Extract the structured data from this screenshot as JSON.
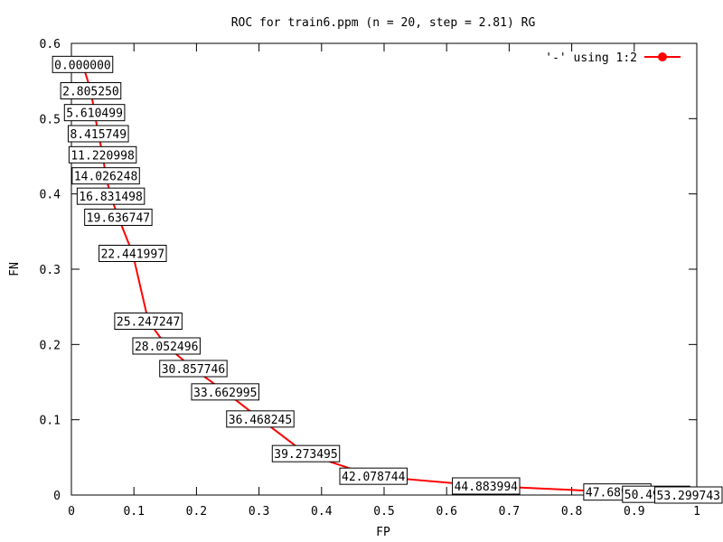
{
  "chart_data": {
    "type": "line",
    "title": "ROC for train6.ppm (n = 20, step = 2.81) RG",
    "xlabel": "FP",
    "ylabel": "FN",
    "xlim": [
      0,
      1
    ],
    "ylim": [
      0,
      0.6
    ],
    "x_ticks": [
      "0",
      "0.1",
      "0.2",
      "0.3",
      "0.4",
      "0.5",
      "0.6",
      "0.7",
      "0.8",
      "0.9",
      "1"
    ],
    "y_ticks": [
      "0",
      "0.1",
      "0.2",
      "0.3",
      "0.4",
      "0.5",
      "0.6"
    ],
    "grid": false,
    "legend_position": "top-right",
    "series": [
      {
        "name": "'-' using 1:2",
        "color": "#ff0000",
        "points": [
          {
            "x": 0.018,
            "y": 0.572,
            "label": "0.000000"
          },
          {
            "x": 0.031,
            "y": 0.537,
            "label": "2.805250"
          },
          {
            "x": 0.037,
            "y": 0.508,
            "label": "5.610499"
          },
          {
            "x": 0.043,
            "y": 0.48,
            "label": "8.415749"
          },
          {
            "x": 0.05,
            "y": 0.452,
            "label": "11.220998"
          },
          {
            "x": 0.055,
            "y": 0.424,
            "label": "14.026248"
          },
          {
            "x": 0.063,
            "y": 0.397,
            "label": "16.831498"
          },
          {
            "x": 0.075,
            "y": 0.369,
            "label": "19.636747"
          },
          {
            "x": 0.098,
            "y": 0.321,
            "label": "22.441997"
          },
          {
            "x": 0.123,
            "y": 0.231,
            "label": "25.247247"
          },
          {
            "x": 0.152,
            "y": 0.198,
            "label": "28.052496"
          },
          {
            "x": 0.195,
            "y": 0.168,
            "label": "30.857746"
          },
          {
            "x": 0.246,
            "y": 0.137,
            "label": "33.662995"
          },
          {
            "x": 0.302,
            "y": 0.101,
            "label": "36.468245"
          },
          {
            "x": 0.375,
            "y": 0.055,
            "label": "39.273495"
          },
          {
            "x": 0.483,
            "y": 0.025,
            "label": "42.078744"
          },
          {
            "x": 0.663,
            "y": 0.012,
            "label": "44.883994"
          },
          {
            "x": 0.873,
            "y": 0.004,
            "label": "47.689244"
          },
          {
            "x": 0.935,
            "y": 0.001,
            "label": "50.494493"
          },
          {
            "x": 0.99,
            "y": 0.0,
            "label": "53.299743"
          }
        ]
      }
    ]
  }
}
